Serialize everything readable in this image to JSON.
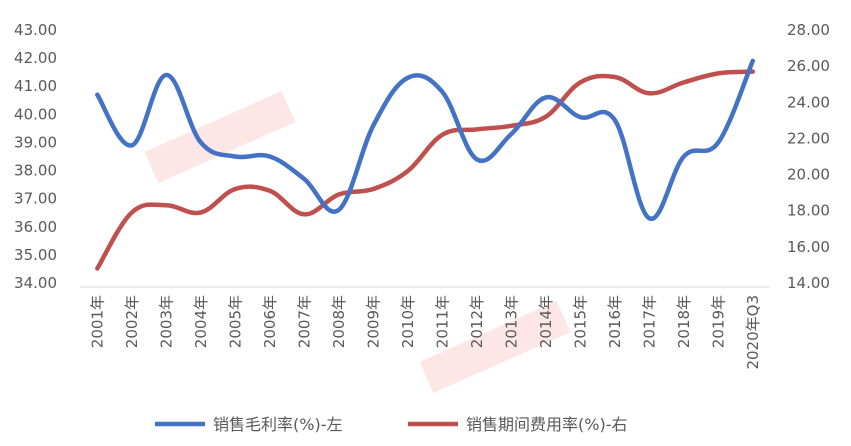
{
  "chart_data": {
    "type": "line",
    "title": "",
    "categories": [
      "2001年",
      "2002年",
      "2003年",
      "2004年",
      "2005年",
      "2006年",
      "2007年",
      "2008年",
      "2009年",
      "2010年",
      "2011年",
      "2012年",
      "2013年",
      "2014年",
      "2015年",
      "2016年",
      "2017年",
      "2018年",
      "2019年",
      "2020年Q3"
    ],
    "y_left": {
      "ylim": [
        34,
        43
      ],
      "ticks": [
        "34.00",
        "35.00",
        "36.00",
        "37.00",
        "38.00",
        "39.00",
        "40.00",
        "41.00",
        "42.00",
        "43.00"
      ]
    },
    "y_right": {
      "ylim": [
        14,
        28
      ],
      "ticks": [
        "14.00",
        "16.00",
        "18.00",
        "20.00",
        "22.00",
        "24.00",
        "26.00",
        "28.00"
      ]
    },
    "series": [
      {
        "name": "销售毛利率(%)-左",
        "axis": "left",
        "color": "#4472C4",
        "values": [
          40.7,
          38.9,
          41.4,
          39.0,
          38.5,
          38.5,
          37.7,
          36.6,
          39.6,
          41.3,
          40.8,
          38.4,
          39.3,
          40.6,
          39.9,
          39.8,
          36.3,
          38.5,
          39.0,
          41.9
        ]
      },
      {
        "name": "销售期间费用率(%)-右",
        "axis": "right",
        "color": "#C0504D",
        "values": [
          14.8,
          17.9,
          18.3,
          17.9,
          19.2,
          19.1,
          17.8,
          18.9,
          19.2,
          20.2,
          22.2,
          22.5,
          22.7,
          23.2,
          25.1,
          25.4,
          24.5,
          25.1,
          25.6,
          25.7
        ]
      }
    ],
    "legend_position": "bottom",
    "grid": false
  }
}
